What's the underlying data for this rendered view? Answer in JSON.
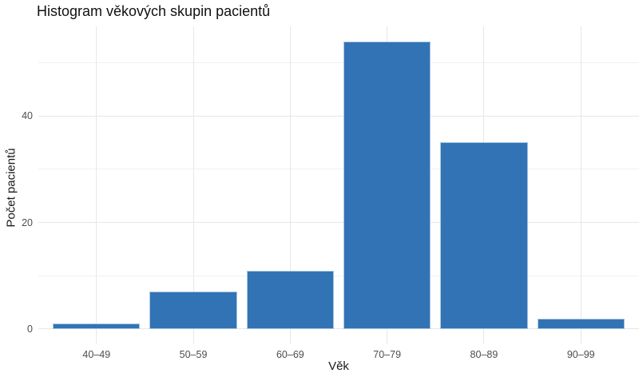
{
  "title": "Histogram věkových skupin pacientů",
  "colors": {
    "bar_fill": "#3273b5",
    "bar_border": "#a9c7e3",
    "grid_major": "#e7e7e7",
    "grid_minor": "#f1f1f1",
    "tick_label": "#4d4d4d",
    "title_color": "#111111",
    "background": "#ffffff"
  },
  "chart_data": {
    "type": "bar",
    "title": "Histogram věkových skupin pacientů",
    "categories": [
      "40–49",
      "50–59",
      "60–69",
      "70–79",
      "80–89",
      "90–99"
    ],
    "values": [
      1,
      7,
      11,
      54,
      35,
      2
    ],
    "xlabel": "Věk",
    "ylabel": "Počet pacientů",
    "ylim": [
      -2.7,
      56.8
    ],
    "yticks_major": [
      0,
      20,
      40
    ],
    "yticks_minor": [
      10,
      30,
      50
    ],
    "grid": true,
    "legend": false,
    "bar_width_fraction": 0.9
  }
}
